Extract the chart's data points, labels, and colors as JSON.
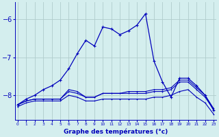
{
  "xlabel": "Graphe des températures (°c)",
  "background_color": "#d4eeee",
  "line_color": "#0000bb",
  "grid_color": "#b0cccc",
  "x_hours": [
    0,
    1,
    2,
    3,
    4,
    5,
    6,
    7,
    8,
    9,
    10,
    11,
    12,
    13,
    14,
    15,
    16,
    17,
    18,
    19,
    20,
    21,
    22,
    23
  ],
  "curve_main": [
    -8.25,
    -8.1,
    -8.0,
    -7.85,
    -7.75,
    -7.6,
    -7.3,
    -6.9,
    -6.55,
    -6.7,
    -6.2,
    -6.25,
    -6.4,
    -6.3,
    -6.15,
    -5.85,
    -7.1,
    -7.65,
    -8.05,
    -7.55,
    -7.55,
    -7.75,
    -8.0,
    -8.4
  ],
  "curve_a": [
    -8.25,
    -8.15,
    -8.1,
    -8.1,
    -8.1,
    -8.1,
    -7.85,
    -7.9,
    -8.05,
    -8.05,
    -7.95,
    -7.95,
    -7.95,
    -7.9,
    -7.9,
    -7.9,
    -7.85,
    -7.85,
    -7.8,
    -7.6,
    -7.6,
    -7.8,
    -8.0,
    -8.35
  ],
  "curve_b": [
    -8.25,
    -8.15,
    -8.1,
    -8.1,
    -8.1,
    -8.1,
    -7.9,
    -7.95,
    -8.05,
    -8.05,
    -7.95,
    -7.95,
    -7.95,
    -7.95,
    -7.95,
    -7.95,
    -7.9,
    -7.9,
    -7.85,
    -7.65,
    -7.65,
    -7.85,
    -8.05,
    -8.38
  ],
  "curve_c": [
    -8.3,
    -8.2,
    -8.15,
    -8.15,
    -8.15,
    -8.15,
    -8.0,
    -8.05,
    -8.15,
    -8.15,
    -8.1,
    -8.1,
    -8.1,
    -8.1,
    -8.1,
    -8.1,
    -8.05,
    -8.05,
    -8.0,
    -7.9,
    -7.85,
    -8.05,
    -8.2,
    -8.5
  ],
  "ylim": [
    -8.65,
    -5.55
  ],
  "yticks": [
    -8,
    -7,
    -6
  ],
  "xlim": [
    -0.3,
    23.3
  ]
}
